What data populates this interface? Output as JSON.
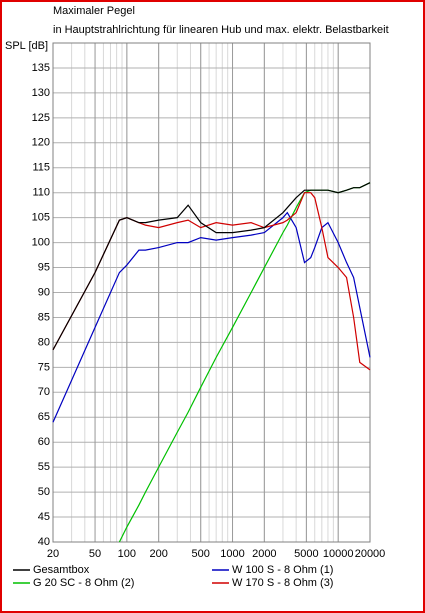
{
  "chart_data": {
    "type": "line",
    "title": "Maximaler Pegel",
    "subtitle": "in Hauptstrahlrichtung für linearen Hub und max. elektr. Belastbarkeit",
    "y_label": "SPL [dB]",
    "x_scale": "log",
    "grid": true,
    "legend": "bottom",
    "x": [
      20,
      50,
      85,
      100,
      130,
      150,
      200,
      300,
      380,
      500,
      700,
      1000,
      1500,
      2000,
      3000,
      3300,
      4000,
      4800,
      5500,
      6000,
      7000,
      8000,
      10000,
      12000,
      14000,
      16000,
      20000
    ],
    "xlim": [
      20,
      20000
    ],
    "xticks": [
      20,
      50,
      100,
      200,
      500,
      1000,
      2000,
      5000,
      10000,
      20000
    ],
    "ylim": [
      40,
      140
    ],
    "yticks": [
      40,
      45,
      50,
      55,
      60,
      65,
      70,
      75,
      80,
      85,
      90,
      95,
      100,
      105,
      110,
      115,
      120,
      125,
      130,
      135
    ],
    "series": [
      {
        "name": "Gesamtbox",
        "color": "#000000",
        "values": [
          78.5,
          94,
          104.5,
          105,
          104,
          104,
          104.5,
          105,
          107.5,
          104,
          102,
          102,
          102.5,
          103,
          106,
          107,
          109,
          110.5,
          110.5,
          110.5,
          110.5,
          110.5,
          110,
          110.5,
          111,
          111,
          112
        ]
      },
      {
        "name": "G 20 SC - 8 Ohm (2)",
        "color": "#00c000",
        "values": [
          null,
          null,
          40,
          43,
          47.4,
          50,
          55,
          62,
          66,
          71,
          77,
          83,
          90,
          95,
          102,
          103.5,
          107,
          110,
          110.5,
          110.5,
          110.5,
          110.5,
          110,
          110.5,
          111,
          111,
          112
        ]
      },
      {
        "name": "W 100 S - 8 Ohm (1)",
        "color": "#0000c0",
        "values": [
          64,
          83,
          94,
          95.5,
          98.5,
          98.5,
          99,
          100,
          100,
          101,
          100.5,
          101,
          101.5,
          102,
          105,
          106,
          103,
          96,
          97,
          99,
          103,
          104,
          100,
          96,
          93,
          87,
          77
        ]
      },
      {
        "name": "W 170 S - 8 Ohm (3)",
        "color": "#d00000",
        "values": [
          78.5,
          94,
          104.5,
          105,
          104,
          103.5,
          103,
          104,
          104.5,
          103,
          104,
          103.5,
          104,
          103,
          104,
          104.5,
          106,
          110,
          110,
          109,
          103,
          97,
          95,
          93,
          85,
          76,
          74.5
        ]
      }
    ]
  }
}
